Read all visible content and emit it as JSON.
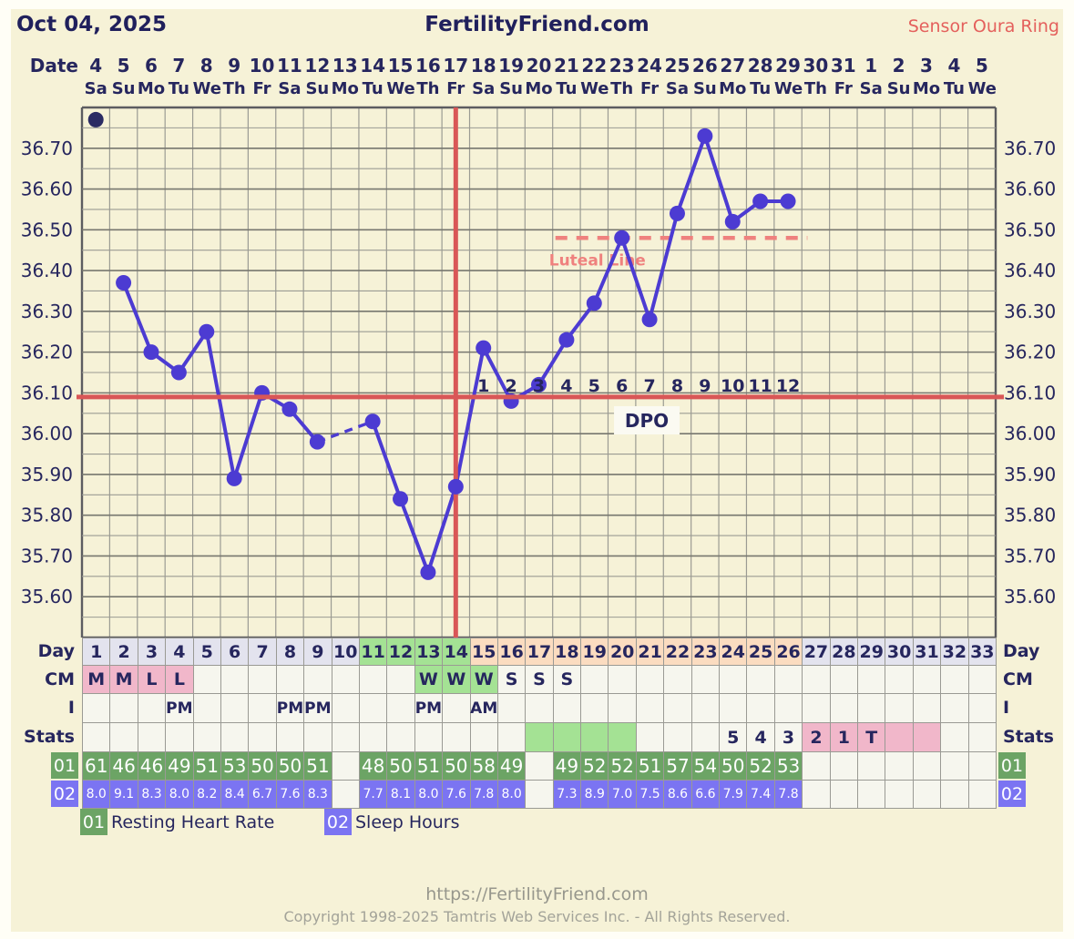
{
  "header": {
    "date": "Oct 04, 2025",
    "title": "FertilityFriend.com",
    "sensor": "Sensor Oura Ring"
  },
  "date_header": {
    "label": "Date",
    "dates": [
      "4",
      "5",
      "6",
      "7",
      "8",
      "9",
      "10",
      "11",
      "12",
      "13",
      "14",
      "15",
      "16",
      "17",
      "18",
      "19",
      "20",
      "21",
      "22",
      "23",
      "24",
      "25",
      "26",
      "27",
      "28",
      "29",
      "30",
      "31",
      "1",
      "2",
      "3",
      "4",
      "5"
    ],
    "weekdays": [
      "Sa",
      "Su",
      "Mo",
      "Tu",
      "We",
      "Th",
      "Fr",
      "Sa",
      "Su",
      "Mo",
      "Tu",
      "We",
      "Th",
      "Fr",
      "Sa",
      "Su",
      "Mo",
      "Tu",
      "We",
      "Th",
      "Fr",
      "Sa",
      "Su",
      "Mo",
      "Tu",
      "We",
      "Th",
      "Fr",
      "Sa",
      "Su",
      "Mo",
      "Tu",
      "We"
    ]
  },
  "chart_data": {
    "type": "line",
    "x_days": [
      1,
      2,
      3,
      4,
      5,
      6,
      7,
      8,
      9,
      10,
      11,
      12,
      13,
      14,
      15,
      16,
      17,
      18,
      19,
      20,
      21,
      22,
      23,
      24,
      25,
      26,
      27,
      28,
      29,
      30,
      31,
      32,
      33
    ],
    "series": [
      {
        "name": "Temperature",
        "values": [
          36.77,
          36.37,
          36.2,
          36.15,
          36.25,
          35.89,
          36.1,
          36.06,
          35.98,
          null,
          36.03,
          35.84,
          35.66,
          35.87,
          36.21,
          36.08,
          36.12,
          36.23,
          36.32,
          36.48,
          36.28,
          36.54,
          36.73,
          36.52,
          36.57,
          36.57,
          null,
          null,
          null,
          null,
          null,
          null,
          null
        ]
      }
    ],
    "disconnected_days": [
      1
    ],
    "dashed_gaps": [
      [
        9,
        11
      ]
    ],
    "ylim": [
      35.5,
      36.8
    ],
    "y_tick_labels": [
      "36.70",
      "36.60",
      "36.50",
      "36.40",
      "36.30",
      "36.20",
      "36.10",
      "36.00",
      "35.90",
      "35.80",
      "35.70",
      "35.60"
    ],
    "y_tick_values": [
      36.7,
      36.6,
      36.5,
      36.4,
      36.3,
      36.2,
      36.1,
      36.0,
      35.9,
      35.8,
      35.7,
      35.6
    ],
    "grid": true,
    "coverline": 36.09,
    "ovulation_day": 14,
    "luteal_line": {
      "value": 36.48,
      "label": "Luteal Line",
      "x_span_days": [
        17.6,
        26.7
      ]
    },
    "dpo": {
      "caption": "DPO",
      "start_day": 15,
      "labels": [
        "1",
        "2",
        "3",
        "4",
        "5",
        "6",
        "7",
        "8",
        "9",
        "10",
        "11",
        "12"
      ]
    }
  },
  "table": {
    "labels": {
      "day": "Day",
      "cm": "CM",
      "i": "I",
      "stats": "Stats",
      "rhr": "01",
      "sleep": "02"
    },
    "day_numbers": [
      "1",
      "2",
      "3",
      "4",
      "5",
      "6",
      "7",
      "8",
      "9",
      "10",
      "11",
      "12",
      "13",
      "14",
      "15",
      "16",
      "17",
      "18",
      "19",
      "20",
      "21",
      "22",
      "23",
      "24",
      "25",
      "26",
      "27",
      "28",
      "29",
      "30",
      "31",
      "32",
      "33"
    ],
    "day_phase": [
      "gray",
      "gray",
      "gray",
      "gray",
      "gray",
      "gray",
      "gray",
      "gray",
      "gray",
      "gray",
      "green",
      "green",
      "green",
      "green",
      "peach",
      "peach",
      "peach",
      "peach",
      "peach",
      "peach",
      "peach",
      "peach",
      "peach",
      "peach",
      "peach",
      "peach",
      "gray",
      "gray",
      "gray",
      "gray",
      "gray",
      "gray",
      "gray"
    ],
    "cm_text": [
      "M",
      "M",
      "L",
      "L",
      "",
      "",
      "",
      "",
      "",
      "",
      "",
      "",
      "W",
      "W",
      "W",
      "S",
      "S",
      "S",
      "",
      "",
      "",
      "",
      "",
      "",
      "",
      "",
      "",
      "",
      "",
      "",
      "",
      "",
      ""
    ],
    "cm_bg": [
      "pink",
      "pink",
      "pink",
      "pink",
      "",
      "",
      "",
      "",
      "",
      "",
      "",
      "",
      "green",
      "green",
      "green",
      "",
      "",
      "",
      "",
      "",
      "",
      "",
      "",
      "",
      "",
      "",
      "",
      "",
      "",
      "",
      "",
      "",
      ""
    ],
    "i_text": [
      "",
      "",
      "",
      "PM",
      "",
      "",
      "",
      "PM",
      "PM",
      "",
      "",
      "",
      "PM",
      "",
      "AM",
      "",
      "",
      "",
      "",
      "",
      "",
      "",
      "",
      "",
      "",
      "",
      "",
      "",
      "",
      "",
      "",
      "",
      ""
    ],
    "stats_text": [
      "",
      "",
      "",
      "",
      "",
      "",
      "",
      "",
      "",
      "",
      "",
      "",
      "",
      "",
      "",
      "",
      "",
      "",
      "",
      "",
      "",
      "",
      "",
      "5",
      "4",
      "3",
      "2",
      "1",
      "T",
      "",
      "",
      "",
      ""
    ],
    "stats_bg": [
      "",
      "",
      "",
      "",
      "",
      "",
      "",
      "",
      "",
      "",
      "",
      "",
      "",
      "",
      "",
      "",
      "green",
      "green",
      "green",
      "green",
      "",
      "",
      "",
      "",
      "",
      "",
      "pink",
      "pink",
      "pink",
      "pink",
      "pink",
      "",
      ""
    ],
    "rhr_values": [
      "61",
      "46",
      "46",
      "49",
      "51",
      "53",
      "50",
      "50",
      "51",
      "",
      "48",
      "50",
      "51",
      "50",
      "58",
      "49",
      "",
      "49",
      "52",
      "52",
      "51",
      "57",
      "54",
      "50",
      "52",
      "53",
      "",
      "",
      "",
      "",
      "",
      "",
      ""
    ],
    "sleep_values": [
      "8.0",
      "9.1",
      "8.3",
      "8.0",
      "8.2",
      "8.4",
      "6.7",
      "7.6",
      "8.3",
      "",
      "7.7",
      "8.1",
      "8.0",
      "7.6",
      "7.8",
      "8.0",
      "",
      "7.3",
      "8.9",
      "7.0",
      "7.5",
      "8.6",
      "6.6",
      "7.9",
      "7.4",
      "7.8",
      "",
      "",
      "",
      "",
      "",
      "",
      ""
    ]
  },
  "legend": [
    {
      "code": "01",
      "label": "Resting Heart Rate"
    },
    {
      "code": "02",
      "label": "Sleep Hours"
    }
  ],
  "footer": {
    "url": "https://FertilityFriend.com",
    "copyright": "Copyright 1998-2025 Tamtris Web Services Inc. - All Rights Reserved."
  },
  "colors": {
    "background": "#f6f2d7",
    "frame_white": "#fffef6",
    "navy_text": "#26265e",
    "sensor_red": "#e4605c",
    "grid_minor": "#9b9b93",
    "grid_major": "#77776f",
    "grid_border": "#5c5c60",
    "temp_line": "#4c3bd2",
    "first_dot": "#2b2b63",
    "red_line": "#d95757",
    "luteal_dash": "#ef817e",
    "day_gray": "#e3e3ee",
    "day_green": "#a4e294",
    "day_peach": "#fbdcc0",
    "cm_pink": "#f1b7ca",
    "cell_white": "#f6f6ee",
    "rhr_green": "#6ca465",
    "sleep_blue": "#7b74f2",
    "footer_gray": "#97978d"
  }
}
